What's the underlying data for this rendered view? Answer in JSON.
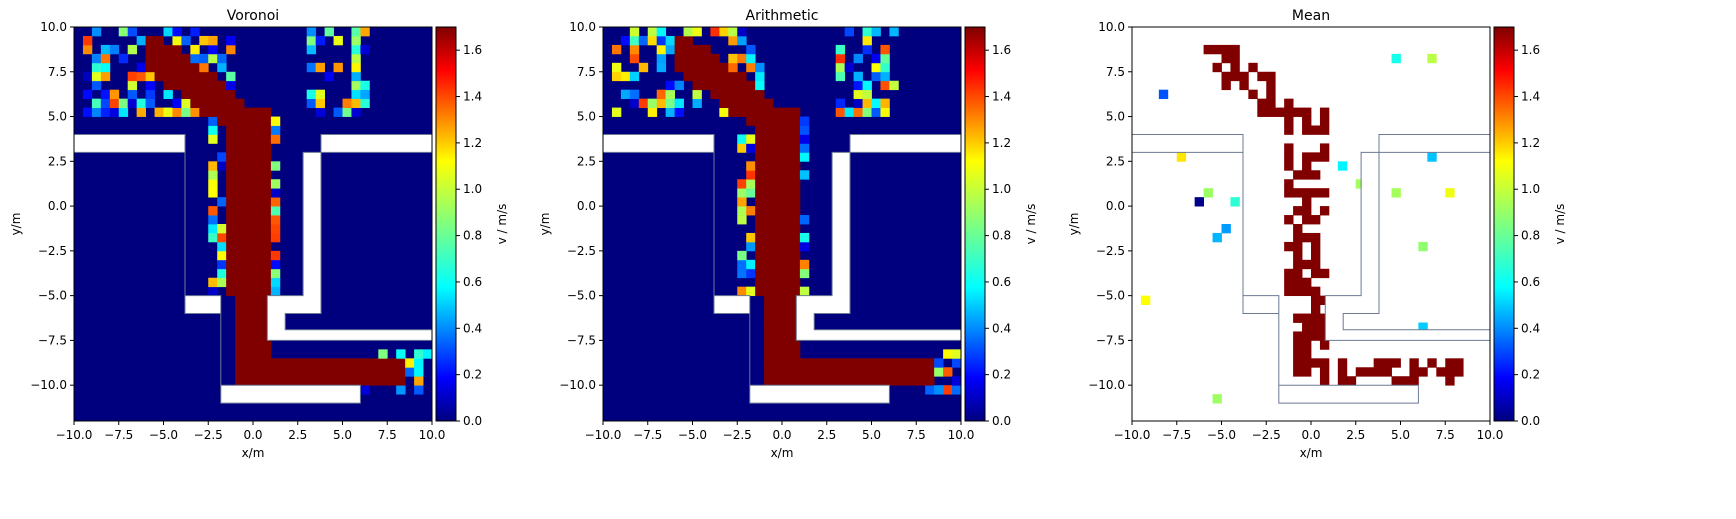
{
  "figure": {
    "colorbar_label": "v / m/s",
    "colorbar_ticks": [
      "0.0",
      "0.2",
      "0.4",
      "0.6",
      "0.8",
      "1.0",
      "1.2",
      "1.4",
      "1.6"
    ],
    "colorbar_max": 1.7,
    "colormap": "jet"
  },
  "chart_data": [
    {
      "type": "heatmap",
      "title": "Voronoi",
      "xlabel": "x/m",
      "ylabel": "y/m",
      "xlim": [
        -10,
        10
      ],
      "ylim": [
        -12,
        10
      ],
      "xticks": [
        "−10.0",
        "−7.5",
        "−5.0",
        "−2.5",
        "0.0",
        "2.5",
        "5.0",
        "7.5",
        "10.0"
      ],
      "yticks": [
        "−10.0",
        "−7.5",
        "−5.0",
        "−2.5",
        "0.0",
        "2.5",
        "5.0",
        "7.5",
        "10.0"
      ],
      "colorbar_label": "v / m/s",
      "geometry": "upper corridor y 3.0–4.0 with gaps; vertical channel from −3.8 to 3.8 narrowing into lower corridor toward x=10",
      "summary": "high velocity (~1.7 m/s) along the central path from upper-left crowd down the channel and right along the bottom corridor; mixed 0.2–1.6 near crowd edges; 0 elsewhere"
    },
    {
      "type": "heatmap",
      "title": "Arithmetic",
      "xlabel": "x/m",
      "ylabel": "y/m",
      "xlim": [
        -10,
        10
      ],
      "ylim": [
        -12,
        10
      ],
      "xticks": [
        "−10.0",
        "−7.5",
        "−5.0",
        "−2.5",
        "0.0",
        "2.5",
        "5.0",
        "7.5",
        "10.0"
      ],
      "yticks": [
        "−10.0",
        "−7.5",
        "−5.0",
        "−2.5",
        "0.0",
        "2.5",
        "5.0",
        "7.5",
        "10.0"
      ],
      "colorbar_label": "v / m/s",
      "summary": "similar to Voronoi with slightly broader high-speed band"
    },
    {
      "type": "heatmap",
      "title": "Mean",
      "xlabel": "x/m",
      "ylabel": "y/m",
      "xlim": [
        -10,
        10
      ],
      "ylim": [
        -12,
        10
      ],
      "xticks": [
        "−10.0",
        "−7.5",
        "−5.0",
        "−2.5",
        "0.0",
        "2.5",
        "5.0",
        "7.5",
        "10.0"
      ],
      "yticks": [
        "−10.0",
        "−7.5",
        "−5.0",
        "−2.5",
        "0.0",
        "2.5",
        "5.0",
        "7.5",
        "10.0"
      ],
      "colorbar_label": "v / m/s",
      "summary": "sparse cells; unobserved cells white; trajectory of dark red cells along the path"
    }
  ]
}
